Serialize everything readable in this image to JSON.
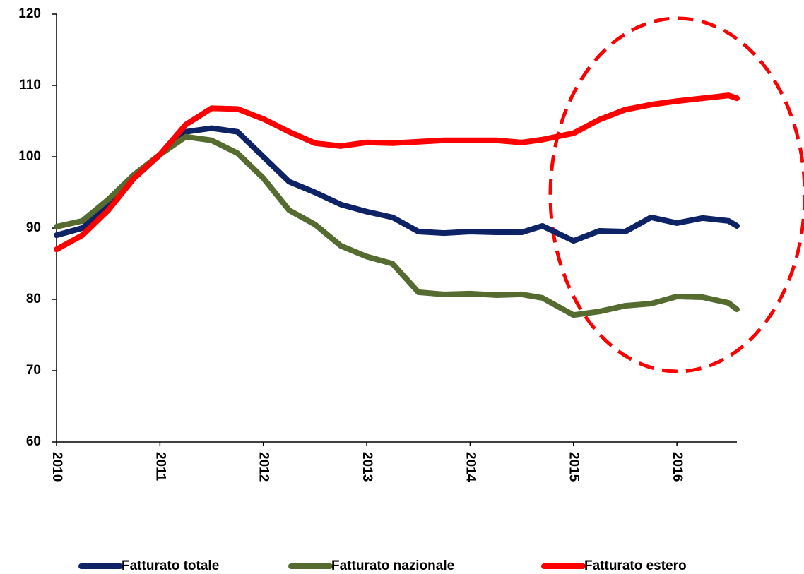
{
  "chart_data": {
    "type": "line",
    "x": [
      2010,
      2010.25,
      2010.5,
      2010.75,
      2011,
      2011.25,
      2011.5,
      2011.75,
      2012,
      2012.25,
      2012.5,
      2012.75,
      2013,
      2013.25,
      2013.5,
      2013.75,
      2014,
      2014.25,
      2014.5,
      2014.7,
      2015,
      2015.25,
      2015.5,
      2015.75,
      2016,
      2016.25,
      2016.5,
      2016.58
    ],
    "series": [
      {
        "name": "Fatturato totale",
        "color": "#0d2366",
        "values": [
          89,
          90,
          93,
          97,
          100.3,
          103.5,
          104,
          103.5,
          100,
          96.5,
          95,
          93.3,
          92.3,
          91.5,
          89.5,
          89.3,
          89.5,
          89.4,
          89.4,
          90.3,
          88.2,
          89.6,
          89.5,
          91.5,
          90.7,
          91.4,
          91,
          90.3
        ]
      },
      {
        "name": "Fatturato nazionale",
        "color": "#556b2f",
        "values": [
          90.2,
          91,
          94,
          97.5,
          100.3,
          102.8,
          102.3,
          100.5,
          97,
          92.5,
          90.5,
          87.5,
          86,
          85,
          81,
          80.7,
          80.8,
          80.6,
          80.7,
          80.2,
          77.8,
          78.3,
          79.1,
          79.4,
          80.4,
          80.3,
          79.5,
          78.6
        ]
      },
      {
        "name": "Fatturato estero",
        "color": "#ff0000",
        "values": [
          87,
          89,
          92.5,
          97,
          100.3,
          104.5,
          106.8,
          106.7,
          105.3,
          103.5,
          101.9,
          101.5,
          102,
          101.9,
          102.1,
          102.3,
          102.3,
          102.3,
          102,
          102.4,
          103.3,
          105.2,
          106.6,
          107.3,
          107.8,
          108.2,
          108.6,
          108.2
        ]
      }
    ],
    "xlim": [
      2010,
      2016.58
    ],
    "xticks": [
      2010,
      2011,
      2012,
      2013,
      2014,
      2015,
      2016
    ],
    "ylim": [
      60,
      120
    ],
    "yticks": [
      60,
      70,
      80,
      90,
      100,
      110,
      120
    ]
  }
}
